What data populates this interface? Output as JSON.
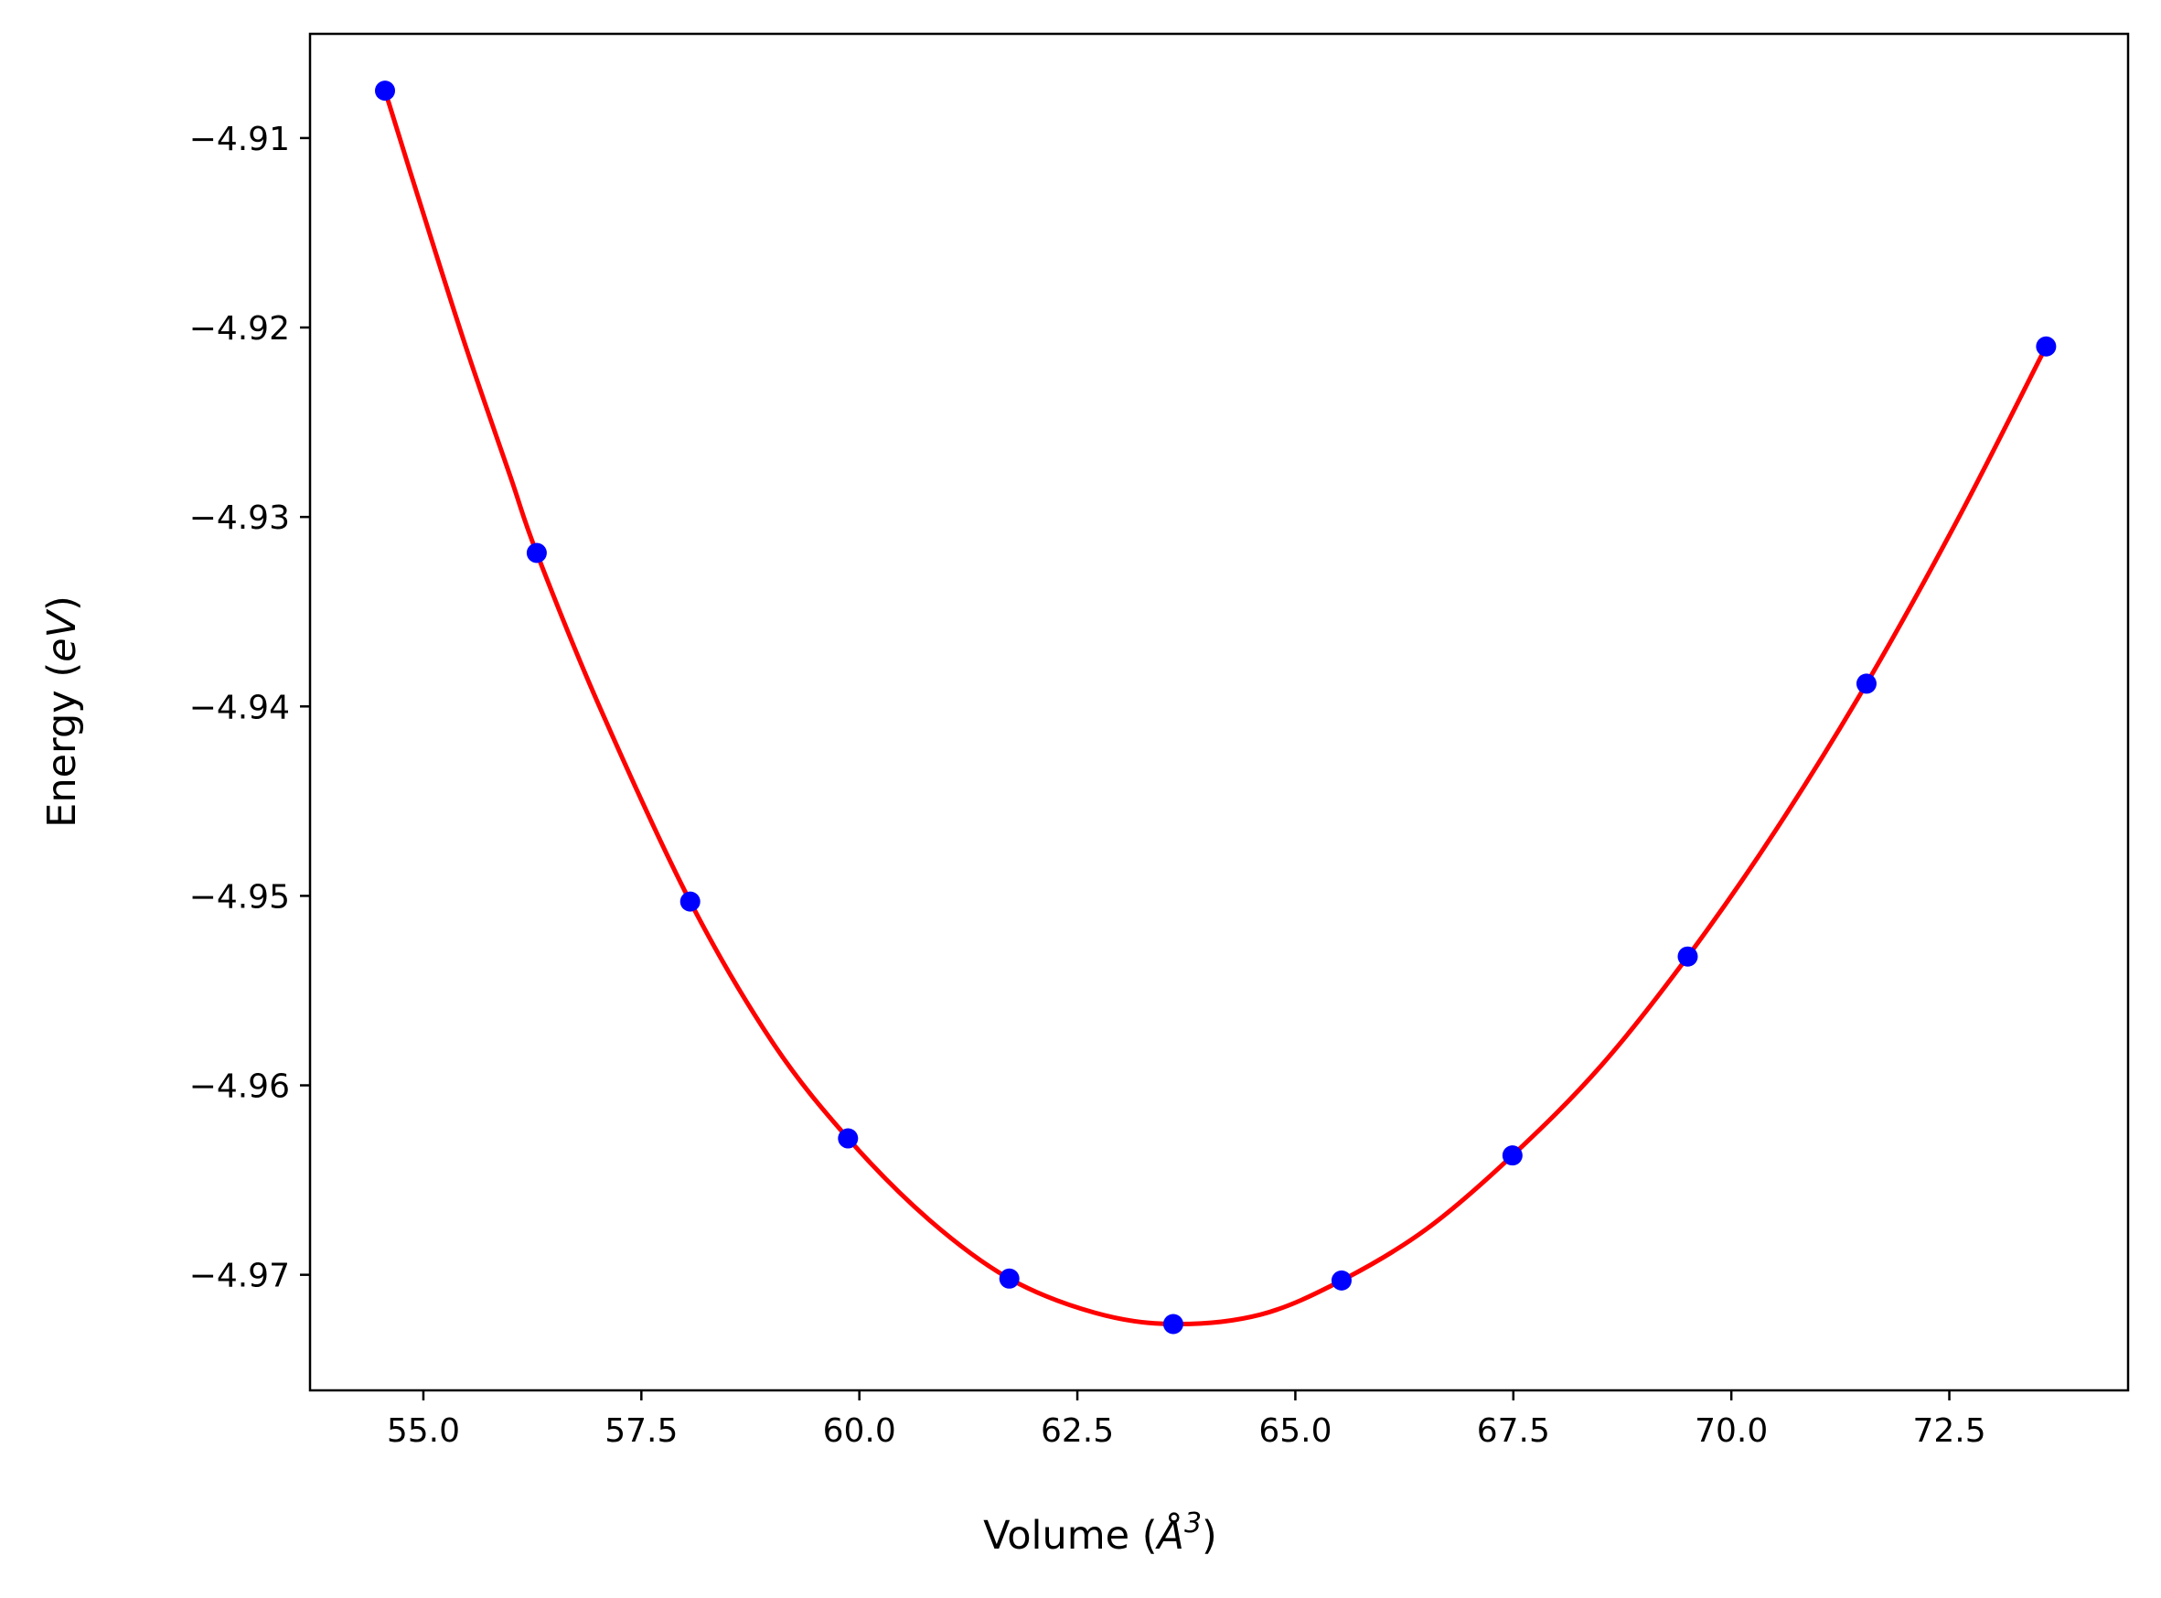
{
  "chart_data": {
    "type": "scatter",
    "title": "",
    "xlabel_prefix": "Volume (",
    "xlabel_unit": "Å",
    "xlabel_exp": "3",
    "xlabel_suffix": ")",
    "ylabel_prefix": "Energy (",
    "ylabel_unit": "eV",
    "ylabel_suffix": ")",
    "xlim": [
      53.7,
      74.55
    ],
    "ylim": [
      -4.9761,
      -4.9045
    ],
    "xticks": [
      55.0,
      57.5,
      60.0,
      62.5,
      65.0,
      67.5,
      70.0,
      72.5
    ],
    "xtick_labels": [
      "55.0",
      "57.5",
      "60.0",
      "62.5",
      "65.0",
      "67.5",
      "70.0",
      "72.5"
    ],
    "yticks": [
      -4.91,
      -4.92,
      -4.93,
      -4.94,
      -4.95,
      -4.96,
      -4.97
    ],
    "ytick_labels": [
      "−4.91",
      "−4.92",
      "−4.93",
      "−4.94",
      "−4.95",
      "−4.96",
      "−4.97"
    ],
    "grid": false,
    "series": [
      {
        "kind": "points",
        "color": "#0000ff",
        "x": [
          54.56,
          56.3,
          58.06,
          59.87,
          61.72,
          63.6,
          65.53,
          67.49,
          69.5,
          71.55,
          73.61
        ],
        "y": [
          -4.9075,
          -4.9319,
          -4.9503,
          -4.9628,
          -4.9702,
          -4.9726,
          -4.9703,
          -4.9637,
          -4.9532,
          -4.9388,
          -4.921
        ]
      },
      {
        "kind": "fit-curve",
        "color": "#ff0000",
        "x": [
          54.56,
          55.0,
          55.5,
          56.0,
          56.3,
          57.0,
          58.06,
          59.0,
          59.87,
          60.8,
          61.72,
          62.7,
          63.6,
          64.6,
          65.53,
          66.5,
          67.49,
          68.5,
          69.5,
          70.5,
          71.55,
          72.6,
          73.61
        ],
        "y": [
          -4.9075,
          -4.914,
          -4.9212,
          -4.9279,
          -4.9319,
          -4.9398,
          -4.9503,
          -4.9577,
          -4.9628,
          -4.9671,
          -4.9702,
          -4.972,
          -4.9726,
          -4.9721,
          -4.9703,
          -4.9676,
          -4.9637,
          -4.959,
          -4.9532,
          -4.9466,
          -4.9388,
          -4.9301,
          -4.921
        ]
      }
    ]
  },
  "colors": {
    "points": "#0000ff",
    "curve": "#ff0000",
    "axes": "#000000"
  }
}
